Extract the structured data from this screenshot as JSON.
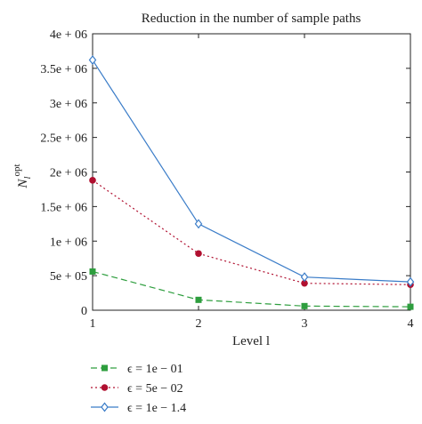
{
  "chart_data": {
    "type": "line",
    "title": "Reduction in the number of sample paths",
    "xlabel": "Level l",
    "ylabel": "N_l^opt",
    "ylabel_main": "N",
    "ylabel_sub": "l",
    "ylabel_sup": "opt",
    "x": [
      1,
      2,
      3,
      4
    ],
    "xlim": [
      1,
      4
    ],
    "ylim": [
      0,
      4000000
    ],
    "xticks": [
      "1",
      "2",
      "3",
      "4"
    ],
    "yticks": [
      "0",
      "5e + 05",
      "1e + 06",
      "1.5e + 06",
      "2e + 06",
      "2.5e + 06",
      "3e + 06",
      "3.5e + 06",
      "4e + 06"
    ],
    "ytick_values": [
      0,
      500000,
      1000000,
      1500000,
      2000000,
      2500000,
      3000000,
      3500000,
      4000000
    ],
    "grid": false,
    "legend_position": "below",
    "series": [
      {
        "name": "ϵ = 1e − 01",
        "values": [
          560000,
          150000,
          60000,
          50000
        ],
        "color": "#2e9e3e",
        "linestyle": "dashed",
        "marker": "square"
      },
      {
        "name": "ϵ = 5e − 02",
        "values": [
          1880000,
          820000,
          390000,
          370000
        ],
        "color": "#b01030",
        "linestyle": "dotted",
        "marker": "circle"
      },
      {
        "name": "ϵ = 1e − 1.4",
        "values": [
          3620000,
          1250000,
          480000,
          410000
        ],
        "color": "#3a7cc8",
        "linestyle": "solid",
        "marker": "diamond"
      }
    ]
  }
}
